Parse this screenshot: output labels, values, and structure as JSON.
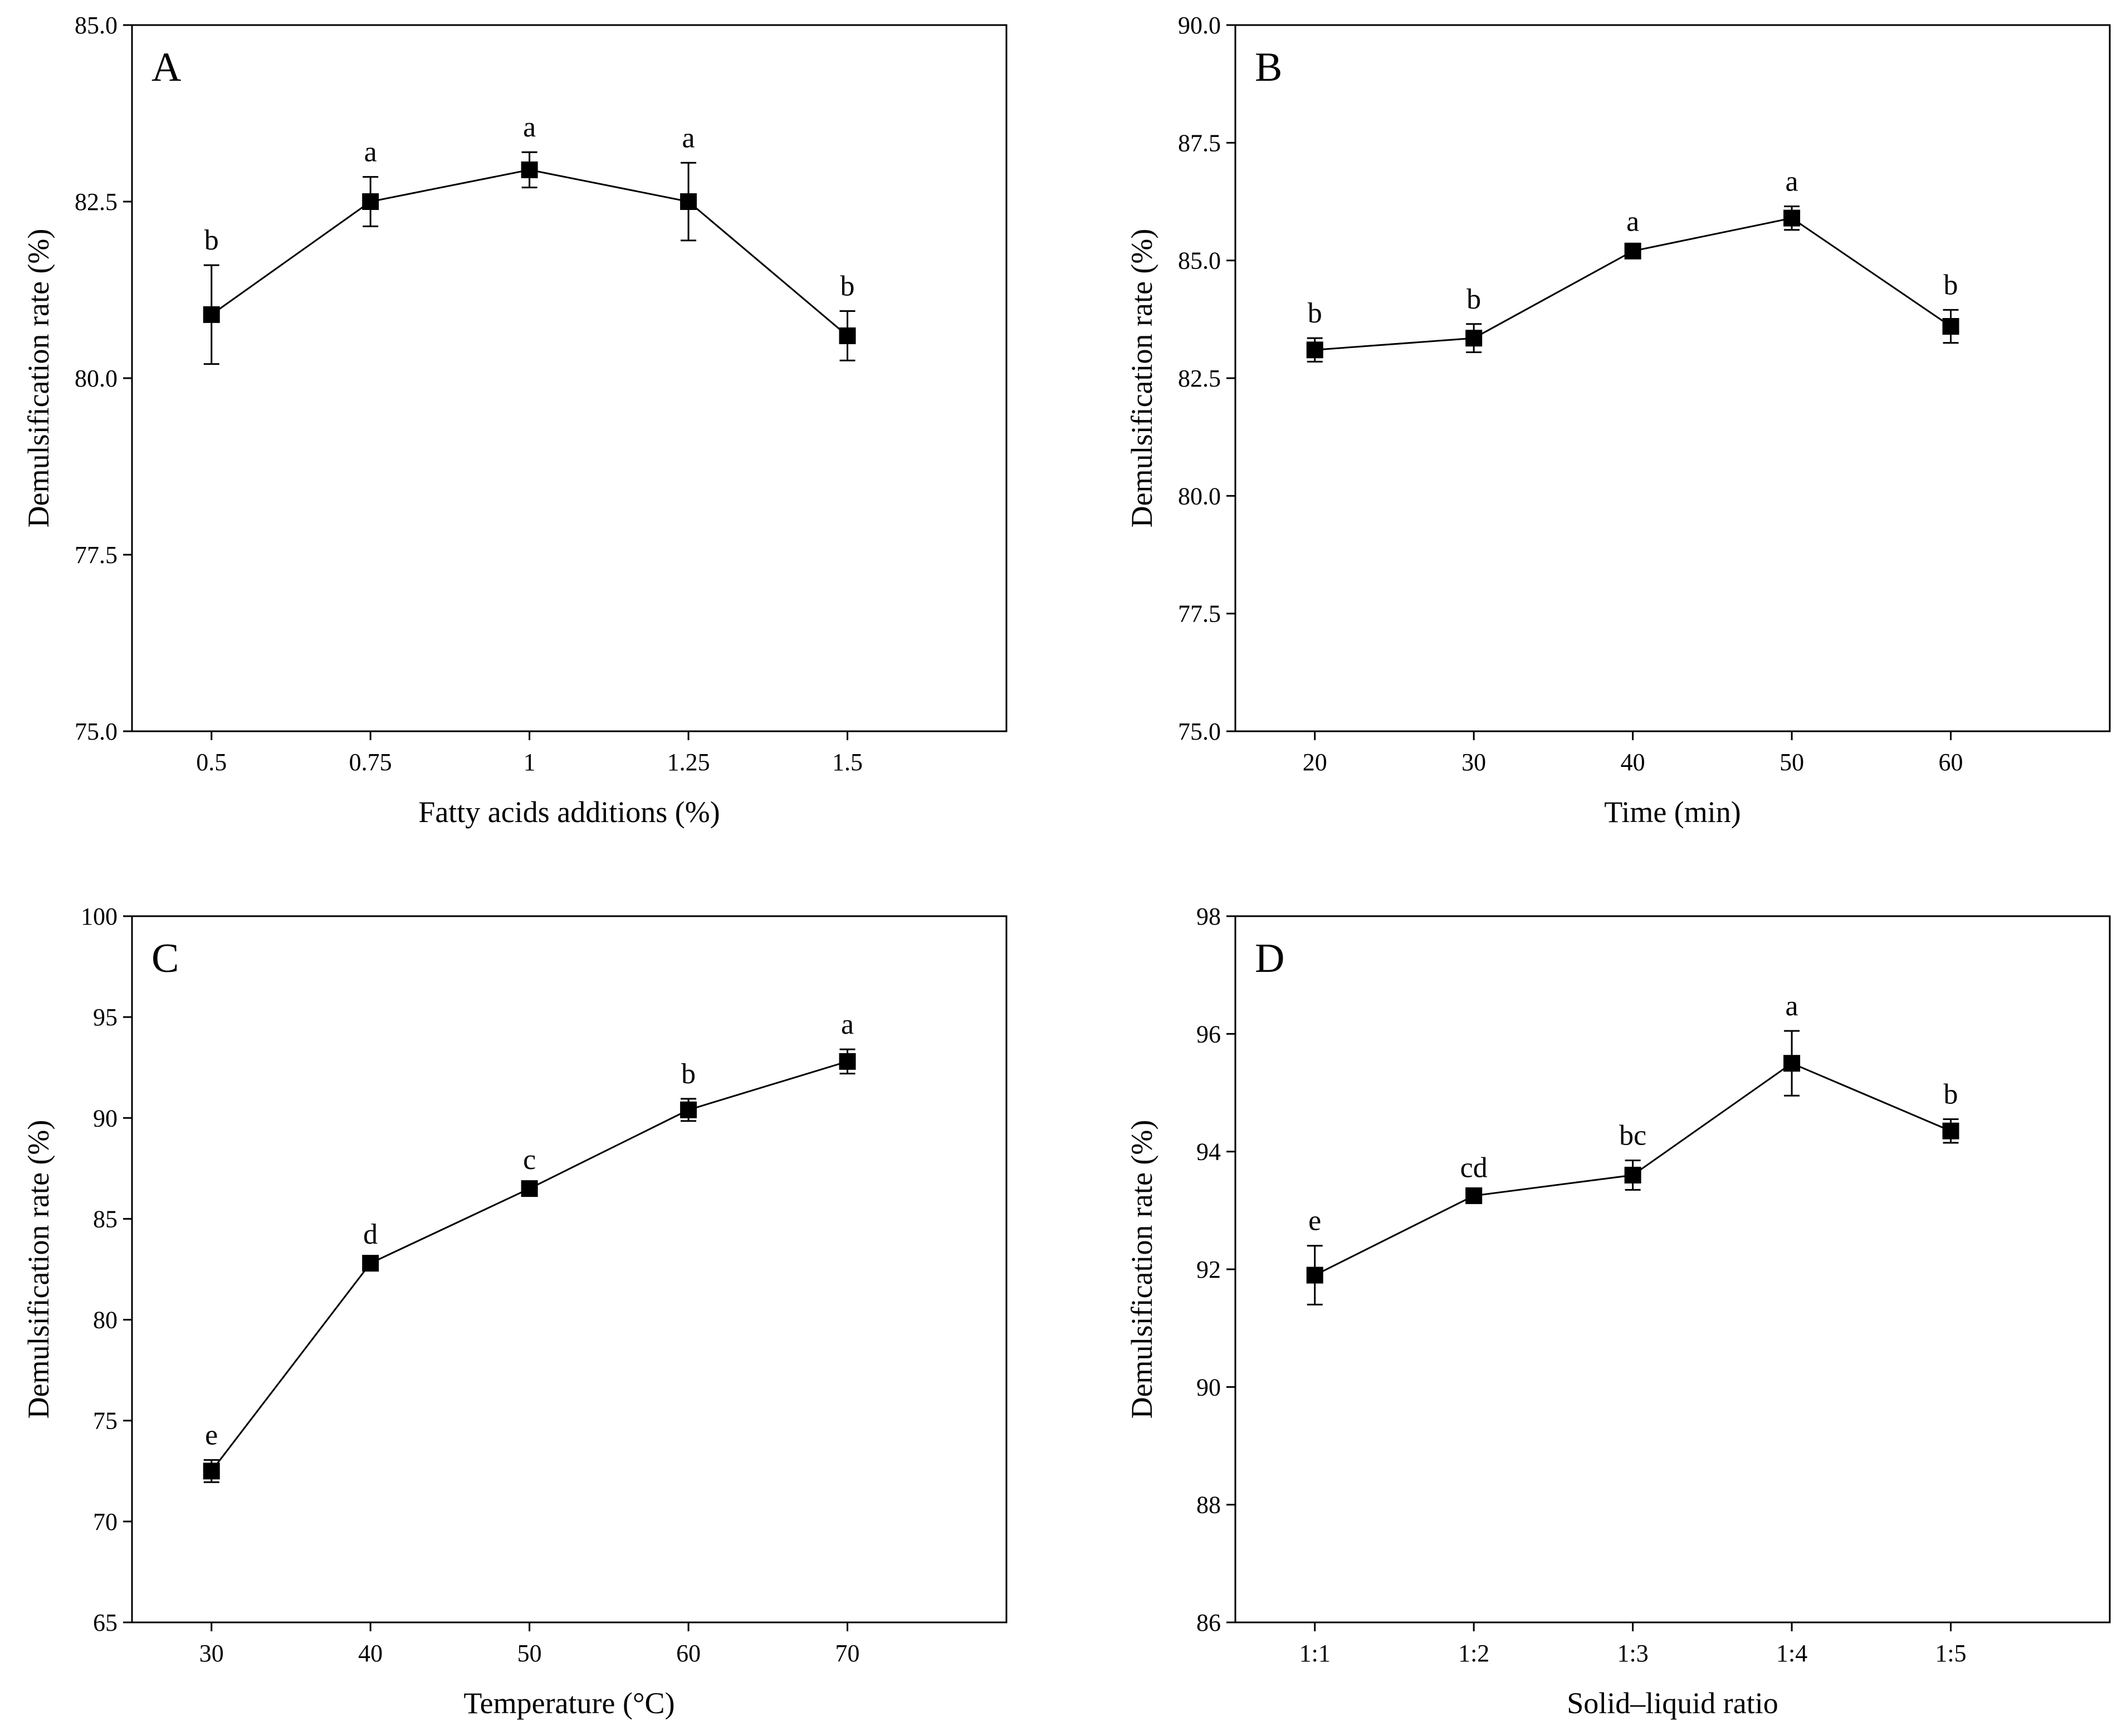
{
  "chart_data": [
    {
      "panel": "A",
      "type": "line",
      "title": "",
      "xlabel": "Fatty acids additions (%)",
      "ylabel": "Demulsification rate (%)",
      "categories": [
        "0.5",
        "0.75",
        "1",
        "1.25",
        "1.5"
      ],
      "values": [
        80.9,
        82.5,
        82.95,
        82.5,
        80.6
      ],
      "errors": [
        0.7,
        0.35,
        0.25,
        0.55,
        0.35
      ],
      "significance": [
        "b",
        "a",
        "a",
        "a",
        "b"
      ],
      "ylim": [
        75.0,
        85.0
      ],
      "yticks": [
        "75.0",
        "77.5",
        "80.0",
        "82.5",
        "85.0"
      ],
      "marker": "square",
      "legend": "none"
    },
    {
      "panel": "B",
      "type": "line",
      "title": "",
      "xlabel": "Time (min)",
      "ylabel": "Demulsification rate (%)",
      "categories": [
        "20",
        "30",
        "40",
        "50",
        "60"
      ],
      "values": [
        83.1,
        83.35,
        85.2,
        85.9,
        83.6
      ],
      "errors": [
        0.25,
        0.3,
        0.1,
        0.25,
        0.35
      ],
      "significance": [
        "b",
        "b",
        "a",
        "a",
        "b"
      ],
      "ylim": [
        75.0,
        90.0
      ],
      "yticks": [
        "75.0",
        "77.5",
        "80.0",
        "82.5",
        "85.0",
        "87.5",
        "90.0"
      ],
      "marker": "square",
      "legend": "none"
    },
    {
      "panel": "C",
      "type": "line",
      "title": "",
      "xlabel": "Temperature (°C)",
      "ylabel": "Demulsification rate (%)",
      "categories": [
        "30",
        "40",
        "50",
        "60",
        "70"
      ],
      "values": [
        72.5,
        82.8,
        86.5,
        90.4,
        92.8
      ],
      "errors": [
        0.55,
        0.2,
        0.2,
        0.55,
        0.6
      ],
      "significance": [
        "e",
        "d",
        "c",
        "b",
        "a"
      ],
      "ylim": [
        65,
        100
      ],
      "yticks": [
        "65",
        "70",
        "75",
        "80",
        "85",
        "90",
        "95",
        "100"
      ],
      "marker": "square",
      "legend": "none"
    },
    {
      "panel": "D",
      "type": "line",
      "title": "",
      "xlabel": "Solid–liquid ratio",
      "ylabel": "Demulsification rate (%)",
      "categories": [
        "1:1",
        "1:2",
        "1:3",
        "1:4",
        "1:5"
      ],
      "values": [
        91.9,
        93.25,
        93.6,
        95.5,
        94.35
      ],
      "errors": [
        0.5,
        0.05,
        0.25,
        0.55,
        0.2
      ],
      "significance": [
        "e",
        "cd",
        "bc",
        "a",
        "b"
      ],
      "ylim": [
        86,
        98
      ],
      "yticks": [
        "86",
        "88",
        "90",
        "92",
        "94",
        "96",
        "98"
      ],
      "marker": "square",
      "legend": "none"
    }
  ]
}
